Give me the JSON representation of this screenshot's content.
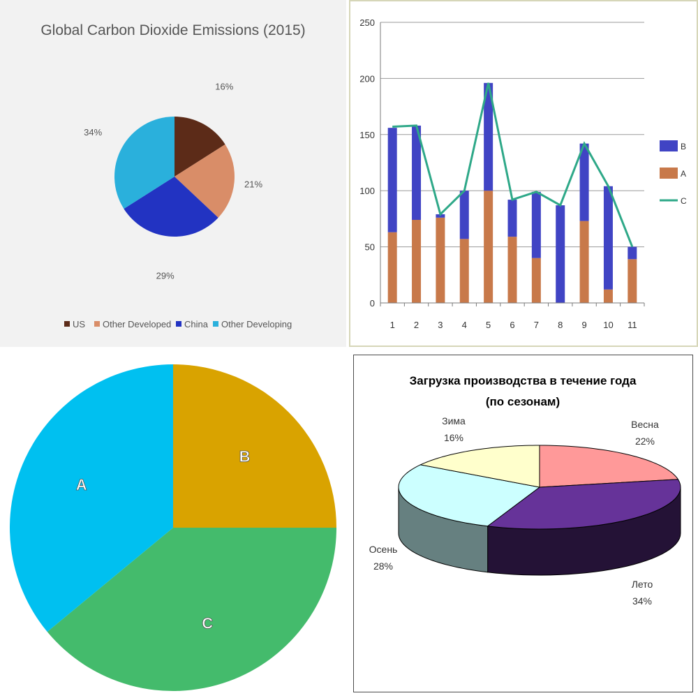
{
  "chart_data": [
    {
      "type": "pie",
      "title": "Global Carbon Dioxide Emissions (2015)",
      "slices": [
        {
          "name": "US",
          "value": 16,
          "label": "16%",
          "color": "#5c2b18"
        },
        {
          "name": "Other Developed",
          "value": 21,
          "label": "21%",
          "color": "#d98d68"
        },
        {
          "name": "China",
          "value": 29,
          "label": "29%",
          "color": "#2233c2"
        },
        {
          "name": "Other Developing",
          "value": 34,
          "label": "34%",
          "color": "#2ab0dc"
        }
      ],
      "legend_position": "bottom"
    },
    {
      "type": "bar",
      "stacked": true,
      "categories": [
        "1",
        "2",
        "3",
        "4",
        "5",
        "6",
        "7",
        "8",
        "9",
        "10",
        "11"
      ],
      "ylim": [
        0,
        250
      ],
      "yticks": [
        "0",
        "50",
        "100",
        "150",
        "200",
        "250"
      ],
      "series": [
        {
          "name": "A",
          "kind": "bar",
          "color": "#c8794a",
          "values": [
            63,
            74,
            76,
            57,
            100,
            59,
            40,
            0,
            73,
            12,
            39
          ]
        },
        {
          "name": "B",
          "kind": "bar",
          "color": "#4044c4",
          "values": [
            93,
            84,
            3,
            43,
            96,
            33,
            59,
            87,
            69,
            92,
            11
          ]
        },
        {
          "name": "C",
          "kind": "line",
          "color": "#2ea888",
          "values": [
            157,
            158,
            79,
            100,
            196,
            92,
            99,
            87,
            142,
            104,
            50
          ]
        }
      ],
      "legend_order": [
        "B",
        "A",
        "C"
      ],
      "legend_position": "right",
      "grid": true
    },
    {
      "type": "pie",
      "slices": [
        {
          "name": "A",
          "label": "A",
          "value": 36,
          "color": "#00c0f0"
        },
        {
          "name": "B",
          "label": "B",
          "value": 25,
          "color": "#d9a300"
        },
        {
          "name": "C",
          "label": "C",
          "value": 39,
          "color": "#44bb6c"
        }
      ]
    },
    {
      "type": "pie",
      "title": "Загрузка производства в течение года",
      "subtitle": "(по сезонам)",
      "slices": [
        {
          "name": "Весна",
          "value": 22,
          "label": "22%",
          "color": "#ff9999"
        },
        {
          "name": "Лето",
          "value": 34,
          "label": "34%",
          "color": "#663399"
        },
        {
          "name": "Осень",
          "value": 28,
          "label": "28%",
          "color": "#ccffff"
        },
        {
          "name": "Зима",
          "value": 16,
          "label": "16%",
          "color": "#ffffcc"
        }
      ],
      "three_d": true
    }
  ]
}
